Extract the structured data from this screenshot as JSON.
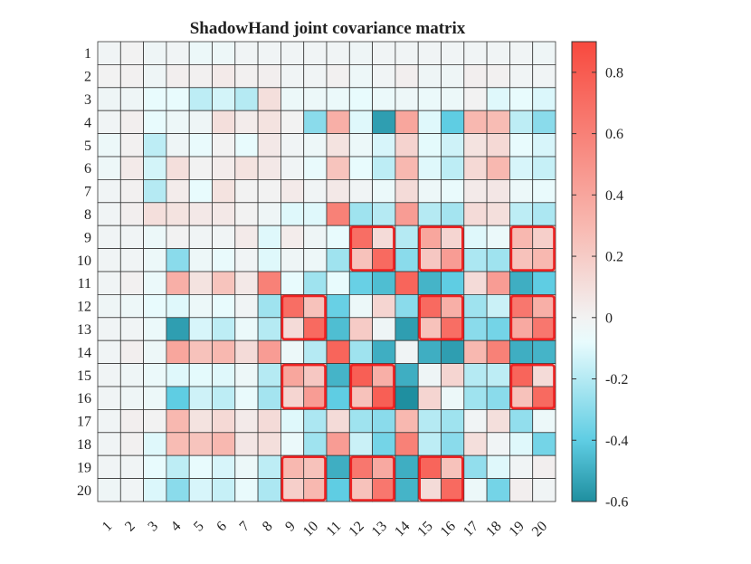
{
  "chart_data": {
    "type": "heatmap",
    "title": "ShadowHand joint covariance matrix",
    "xlabel": "",
    "ylabel": "",
    "x_ticks": [
      "1",
      "2",
      "3",
      "4",
      "5",
      "6",
      "7",
      "8",
      "9",
      "10",
      "11",
      "12",
      "13",
      "14",
      "15",
      "16",
      "17",
      "18",
      "19",
      "20"
    ],
    "y_ticks": [
      "1",
      "2",
      "3",
      "4",
      "5",
      "6",
      "7",
      "8",
      "9",
      "10",
      "11",
      "12",
      "13",
      "14",
      "15",
      "16",
      "17",
      "18",
      "19",
      "20"
    ],
    "colorbar": {
      "range": [
        -0.6,
        0.9
      ],
      "ticks": [
        -0.6,
        -0.4,
        -0.2,
        0,
        0.2,
        0.4,
        0.6,
        0.8
      ],
      "tick_labels": [
        "-0.6",
        "-0.4",
        "-0.2",
        "0",
        "0.2",
        "0.4",
        "0.6",
        "0.8"
      ],
      "colors": {
        "min": "#1f8fa0",
        "low": "#5fcde3",
        "near_zero": "#e8fbfd",
        "zero": "#f2f2f2",
        "mid_high": "#f8b8b0",
        "max": "#f8493e"
      }
    },
    "highlight_color": "#ee2222",
    "highlights": [
      {
        "rows": [
          9,
          10
        ],
        "cols": [
          12,
          13
        ]
      },
      {
        "rows": [
          9,
          10
        ],
        "cols": [
          15,
          16
        ]
      },
      {
        "rows": [
          9,
          10
        ],
        "cols": [
          19,
          20
        ]
      },
      {
        "rows": [
          12,
          13
        ],
        "cols": [
          9,
          10
        ]
      },
      {
        "rows": [
          12,
          13
        ],
        "cols": [
          15,
          16
        ]
      },
      {
        "rows": [
          12,
          13
        ],
        "cols": [
          19,
          20
        ]
      },
      {
        "rows": [
          15,
          16
        ],
        "cols": [
          9,
          10
        ]
      },
      {
        "rows": [
          15,
          16
        ],
        "cols": [
          12,
          13
        ]
      },
      {
        "rows": [
          15,
          16
        ],
        "cols": [
          19,
          20
        ]
      },
      {
        "rows": [
          19,
          20
        ],
        "cols": [
          9,
          10
        ]
      },
      {
        "rows": [
          19,
          20
        ],
        "cols": [
          12,
          13
        ]
      },
      {
        "rows": [
          19,
          20
        ],
        "cols": [
          15,
          16
        ]
      }
    ],
    "values": [
      [
        -0.02,
        0.0,
        -0.03,
        -0.02,
        -0.05,
        -0.04,
        -0.02,
        -0.02,
        -0.02,
        -0.02,
        -0.02,
        -0.03,
        -0.02,
        -0.02,
        -0.02,
        -0.02,
        -0.02,
        -0.02,
        -0.02,
        -0.03
      ],
      [
        0.0,
        0.01,
        -0.03,
        0.02,
        0.01,
        0.04,
        0.01,
        0.02,
        -0.02,
        -0.02,
        0.01,
        -0.04,
        -0.02,
        0.02,
        -0.03,
        -0.03,
        0.02,
        0.01,
        -0.02,
        -0.02
      ],
      [
        -0.03,
        -0.03,
        -0.08,
        -0.08,
        -0.18,
        -0.13,
        -0.2,
        0.1,
        -0.05,
        -0.05,
        -0.06,
        -0.08,
        -0.06,
        -0.04,
        -0.06,
        -0.05,
        0.0,
        -0.1,
        -0.08,
        -0.11
      ],
      [
        -0.02,
        0.02,
        -0.08,
        -0.04,
        -0.03,
        0.1,
        0.03,
        0.08,
        0.0,
        -0.3,
        0.35,
        -0.1,
        -0.55,
        0.4,
        -0.1,
        -0.4,
        0.3,
        0.28,
        -0.18,
        -0.3
      ],
      [
        -0.05,
        0.01,
        -0.18,
        -0.03,
        -0.07,
        0.0,
        -0.08,
        0.05,
        -0.02,
        -0.04,
        0.08,
        -0.05,
        -0.12,
        0.16,
        -0.09,
        -0.14,
        0.08,
        0.13,
        -0.08,
        -0.12
      ],
      [
        -0.04,
        0.04,
        -0.13,
        0.1,
        0.0,
        0.03,
        0.08,
        0.05,
        -0.02,
        -0.07,
        0.24,
        -0.08,
        -0.18,
        0.3,
        -0.1,
        -0.18,
        0.13,
        0.3,
        -0.12,
        -0.16
      ],
      [
        -0.02,
        0.01,
        -0.2,
        0.03,
        -0.08,
        0.08,
        0.0,
        0.0,
        0.04,
        -0.02,
        0.05,
        -0.02,
        -0.06,
        0.12,
        -0.04,
        -0.07,
        0.04,
        0.06,
        -0.05,
        -0.07
      ],
      [
        -0.02,
        0.02,
        0.1,
        0.08,
        0.05,
        0.05,
        0.0,
        -0.03,
        -0.1,
        -0.1,
        0.6,
        -0.25,
        -0.2,
        0.45,
        -0.2,
        -0.24,
        0.12,
        0.1,
        -0.18,
        -0.22
      ],
      [
        -0.02,
        -0.02,
        -0.05,
        0.0,
        -0.02,
        -0.02,
        0.04,
        -0.1,
        0.03,
        -0.03,
        -0.08,
        0.7,
        0.12,
        -0.2,
        0.4,
        0.15,
        -0.1,
        -0.06,
        0.3,
        0.18
      ],
      [
        -0.02,
        -0.02,
        -0.05,
        -0.3,
        -0.04,
        -0.07,
        -0.02,
        -0.1,
        -0.03,
        -0.04,
        -0.25,
        0.25,
        0.72,
        -0.3,
        0.22,
        0.45,
        -0.22,
        -0.25,
        0.25,
        0.3
      ],
      [
        -0.02,
        0.01,
        -0.06,
        0.35,
        0.08,
        0.24,
        0.05,
        0.6,
        -0.08,
        -0.25,
        -0.08,
        -0.38,
        -0.45,
        0.75,
        -0.48,
        -0.4,
        0.12,
        0.45,
        -0.5,
        -0.4
      ],
      [
        -0.03,
        -0.04,
        -0.08,
        -0.1,
        -0.05,
        -0.08,
        -0.02,
        -0.25,
        0.7,
        0.25,
        -0.38,
        -0.05,
        0.15,
        -0.3,
        0.72,
        0.35,
        -0.25,
        -0.15,
        0.65,
        0.35
      ],
      [
        -0.02,
        -0.02,
        -0.06,
        -0.55,
        -0.12,
        -0.18,
        -0.06,
        -0.2,
        0.12,
        0.72,
        -0.45,
        0.2,
        -0.03,
        -0.55,
        0.25,
        0.7,
        -0.3,
        -0.35,
        0.38,
        0.65
      ],
      [
        -0.02,
        0.02,
        -0.04,
        0.4,
        0.25,
        0.3,
        0.12,
        0.45,
        -0.05,
        -0.2,
        0.75,
        -0.25,
        -0.5,
        -0.02,
        -0.5,
        -0.55,
        0.3,
        0.6,
        -0.5,
        -0.48
      ],
      [
        -0.02,
        -0.03,
        -0.06,
        -0.1,
        -0.09,
        -0.1,
        -0.04,
        -0.2,
        0.4,
        0.22,
        -0.48,
        0.78,
        0.35,
        -0.5,
        -0.03,
        0.15,
        -0.2,
        -0.18,
        0.75,
        0.12
      ],
      [
        -0.02,
        -0.03,
        -0.05,
        -0.4,
        -0.14,
        -0.18,
        -0.07,
        -0.24,
        0.15,
        0.45,
        -0.4,
        0.25,
        0.78,
        -0.6,
        0.15,
        -0.05,
        -0.25,
        -0.3,
        0.25,
        0.72
      ],
      [
        -0.02,
        0.02,
        0.0,
        0.3,
        0.08,
        0.13,
        0.04,
        0.12,
        -0.1,
        -0.22,
        0.12,
        -0.25,
        -0.3,
        0.3,
        -0.2,
        -0.25,
        -0.02,
        0.1,
        -0.28,
        -0.05
      ],
      [
        -0.02,
        0.01,
        -0.1,
        0.28,
        0.24,
        0.3,
        0.06,
        0.1,
        -0.06,
        -0.25,
        0.45,
        -0.15,
        -0.35,
        0.6,
        -0.18,
        -0.3,
        0.1,
        -0.02,
        -0.1,
        -0.35
      ],
      [
        -0.02,
        -0.02,
        -0.08,
        -0.18,
        -0.08,
        -0.12,
        -0.05,
        -0.18,
        0.3,
        0.25,
        -0.5,
        0.65,
        0.38,
        -0.5,
        0.75,
        0.25,
        -0.28,
        -0.1,
        -0.02,
        0.02
      ],
      [
        -0.03,
        -0.02,
        -0.11,
        -0.3,
        -0.12,
        -0.16,
        -0.07,
        -0.22,
        0.18,
        0.3,
        -0.4,
        0.25,
        0.65,
        -0.48,
        0.12,
        0.72,
        -0.05,
        -0.35,
        0.02,
        -0.02
      ]
    ]
  }
}
